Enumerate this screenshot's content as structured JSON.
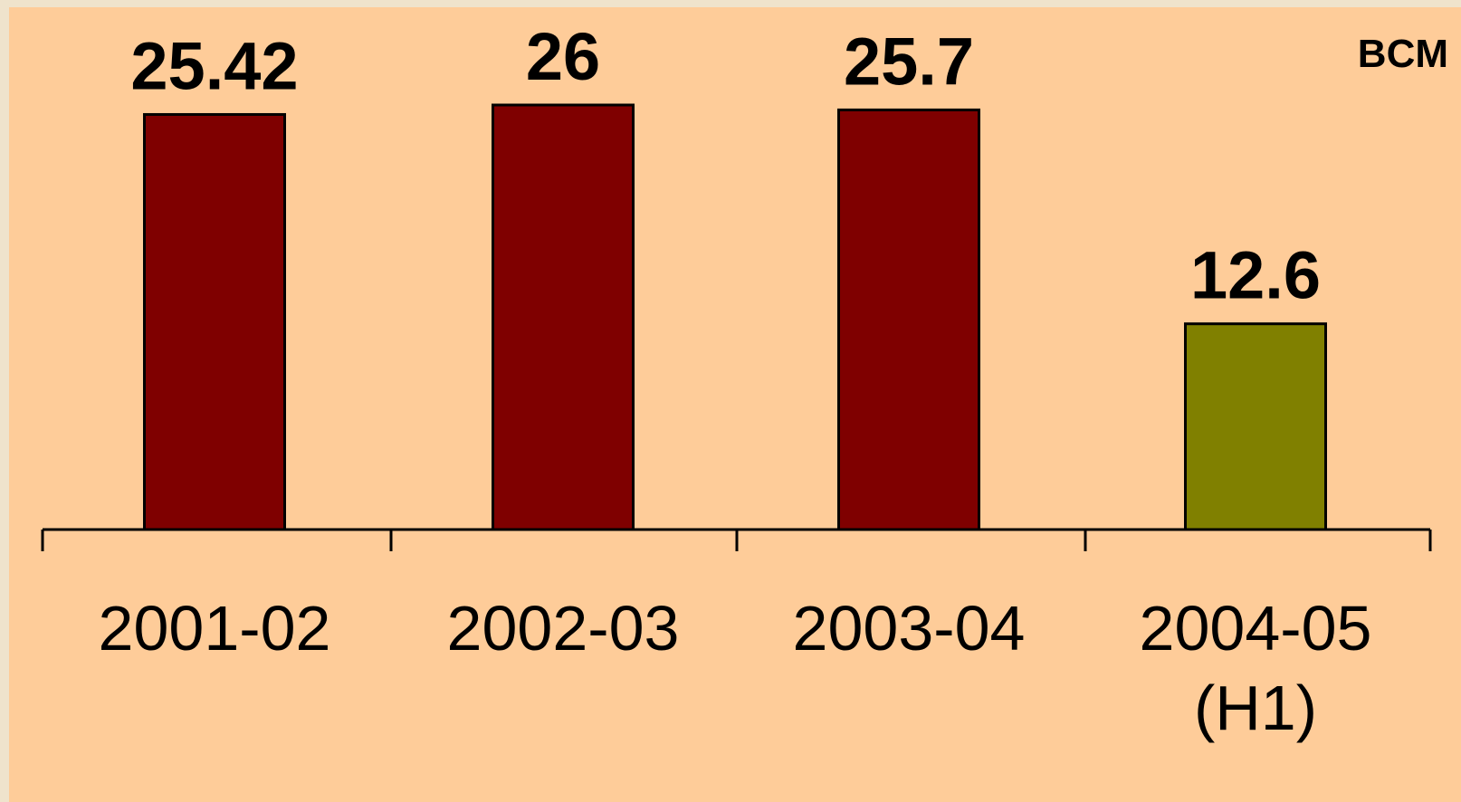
{
  "chart_data": {
    "type": "bar",
    "unit": "BCM",
    "categories": [
      [
        "2001-02"
      ],
      [
        "2002-03"
      ],
      [
        "2003-04"
      ],
      [
        "2004-05",
        "(H1)"
      ]
    ],
    "values": [
      25.42,
      26,
      25.7,
      12.6
    ],
    "value_labels": [
      "25.42",
      "26",
      "25.7",
      "12.6"
    ],
    "bar_colors": [
      "#7f0000",
      "#7f0000",
      "#7f0000",
      "#808000"
    ],
    "ylim": [
      0,
      26
    ],
    "grid": false,
    "legend": "none",
    "title": "",
    "xlabel": "",
    "ylabel": ""
  },
  "colors": {
    "background": "#fecc99",
    "frame": "#efe3cc",
    "axis": "#000000"
  }
}
